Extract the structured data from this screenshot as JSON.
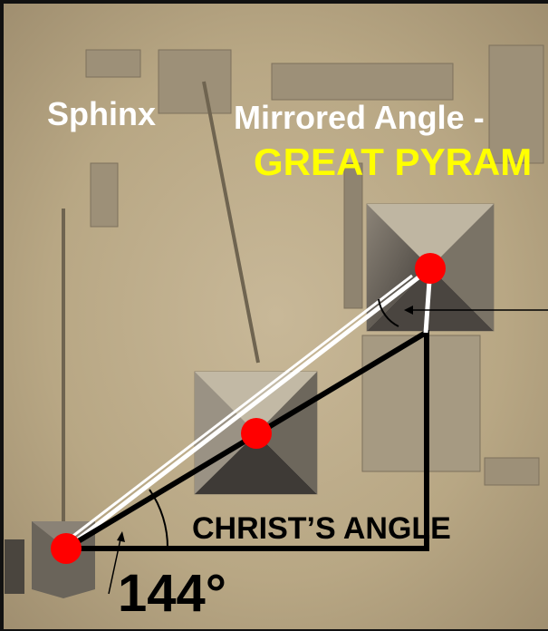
{
  "labels": {
    "sphinx": "Sphinx",
    "subtitle": "Mirrored Angle -",
    "title": "GREAT PYRAM",
    "angle_name": "CHRIST’S ANGLE",
    "angle_value": "144°"
  }
}
